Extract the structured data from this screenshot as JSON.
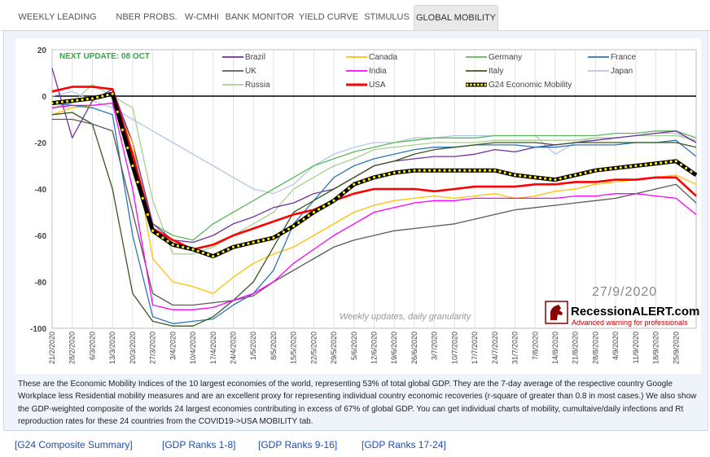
{
  "tabs": [
    "WEEKLY LEADING INDEX",
    "NBER PROBS.",
    "W-CMHI",
    "BANK MONITOR",
    "YIELD CURVE",
    "STIMULUS",
    "GLOBAL MOBILITY"
  ],
  "active_tab": "GLOBAL MOBILITY",
  "caption": "These are the Economic Mobility Indices of the 10 largest economies of the world, representing 53% of total global GDP. They are the 7-day average of the respective country Google Workplace less Residential mobility measures and are an excellent proxy for representing individual country economic recoveries (r-square of greater than 0.8 in most cases.) We also show the GDP-weighted composite of the worlds 24 largest economies contributing in excess of 67% of global GDP. You can get individual charts of mobility, cumultaive/daily infections and Rt reproduction rates for these 24 countries from the COVID19->USA MOBILITY tab.",
  "links": [
    "[G24 Composite Summary]",
    "[GDP Ranks 1-8]",
    "[GDP Ranks 9-16]",
    "[GDP Ranks 17-24]"
  ],
  "chart_data": {
    "type": "line",
    "annotations": {
      "next_update": "NEXT UPDATE: 08 OCT",
      "date_stamp": "27/9/2020",
      "footnote": "Weekly updates, daily granularity",
      "brand": "RecessionALERT.com",
      "brand_tagline": "Advanced warning for professionals"
    },
    "ylim": [
      -100,
      20
    ],
    "yticks": [
      20,
      0,
      -20,
      -40,
      -60,
      -80,
      -100
    ],
    "x_tick_labels": [
      "21/2/2020",
      "28/2/2020",
      "6/3/2020",
      "13/3/2020",
      "20/3/2020",
      "27/3/2020",
      "3/4/2020",
      "10/4/2020",
      "17/4/2020",
      "24/4/2020",
      "1/5/2020",
      "8/5/2020",
      "15/5/2020",
      "22/5/2020",
      "29/5/2020",
      "5/6/2020",
      "12/6/2020",
      "19/6/2020",
      "26/6/2020",
      "3/7/2020",
      "10/7/2020",
      "17/7/2020",
      "24/7/2020",
      "31/7/2020",
      "7/8/2020",
      "14/8/2020",
      "21/8/2020",
      "28/8/2020",
      "4/9/2020",
      "11/9/2020",
      "18/9/2020",
      "25/9/2020"
    ],
    "x": [
      "21/2",
      "28/2",
      "6/3",
      "13/3",
      "20/3",
      "27/3",
      "3/4",
      "10/4",
      "17/4",
      "24/4",
      "1/5",
      "8/5",
      "15/5",
      "22/5",
      "29/5",
      "5/6",
      "12/6",
      "19/6",
      "26/6",
      "3/7",
      "10/7",
      "17/7",
      "24/7",
      "31/7",
      "7/8",
      "14/8",
      "21/8",
      "28/8",
      "4/9",
      "11/9",
      "18/9",
      "25/9",
      "28/9"
    ],
    "colors": {
      "zero_line": "#000000",
      "marker": "#ffee00"
    },
    "series": [
      {
        "name": "Brazil",
        "color": "#7030a0",
        "values": [
          12,
          -18,
          -2,
          3,
          -20,
          -55,
          -62,
          -63,
          -60,
          -55,
          -52,
          -48,
          -46,
          -42,
          -40,
          -35,
          -30,
          -28,
          -27,
          -26,
          -26,
          -25,
          -23,
          -24,
          -22,
          -21,
          -20,
          -19,
          -18,
          -17,
          -16,
          -15,
          -20
        ]
      },
      {
        "name": "Canada",
        "color": "#ffc000",
        "values": [
          -8,
          -5,
          -4,
          -3,
          -20,
          -70,
          -80,
          -82,
          -85,
          -78,
          -72,
          -68,
          -65,
          -60,
          -55,
          -50,
          -47,
          -45,
          -44,
          -43,
          -44,
          -43,
          -42,
          -44,
          -43,
          -41,
          -40,
          -38,
          -37,
          -36,
          -35,
          -34,
          -38
        ]
      },
      {
        "name": "Germany",
        "color": "#5cb85c",
        "values": [
          -3,
          -2,
          -1,
          1,
          -20,
          -55,
          -60,
          -62,
          -55,
          -50,
          -45,
          -40,
          -35,
          -30,
          -27,
          -24,
          -22,
          -20,
          -19,
          -18,
          -18,
          -18,
          -17,
          -17,
          -17,
          -17,
          -17,
          -17,
          -16,
          -16,
          -15,
          -15,
          -18
        ]
      },
      {
        "name": "France",
        "color": "#2e75b6",
        "values": [
          -3,
          -4,
          -5,
          -8,
          -60,
          -95,
          -98,
          -97,
          -96,
          -90,
          -85,
          -75,
          -55,
          -45,
          -35,
          -30,
          -27,
          -25,
          -23,
          -22,
          -22,
          -21,
          -21,
          -21,
          -22,
          -22,
          -21,
          -21,
          -21,
          -20,
          -20,
          -19,
          -26
        ]
      },
      {
        "name": "UK",
        "color": "#595959",
        "values": [
          -10,
          -10,
          -12,
          -15,
          -50,
          -85,
          -90,
          -90,
          -89,
          -88,
          -86,
          -80,
          -75,
          -70,
          -65,
          -62,
          -60,
          -58,
          -57,
          -56,
          -55,
          -53,
          -51,
          -49,
          -48,
          -47,
          -46,
          -45,
          -44,
          -42,
          -40,
          -38,
          -46
        ]
      },
      {
        "name": "India",
        "color": "#ff00ff",
        "values": [
          -5,
          -4,
          -4,
          -3,
          -40,
          -90,
          -92,
          -92,
          -91,
          -88,
          -85,
          -80,
          -72,
          -66,
          -60,
          -55,
          -50,
          -48,
          -46,
          -45,
          -45,
          -44,
          -44,
          -44,
          -44,
          -44,
          -43,
          -43,
          -42,
          -42,
          -43,
          -44,
          -51
        ]
      },
      {
        "name": "Italy",
        "color": "#385723",
        "values": [
          -8,
          -7,
          -12,
          -40,
          -85,
          -97,
          -99,
          -99,
          -95,
          -88,
          -80,
          -65,
          -50,
          -45,
          -40,
          -35,
          -30,
          -28,
          -25,
          -23,
          -22,
          -21,
          -20,
          -20,
          -20,
          -21,
          -20,
          -20,
          -20,
          -20,
          -20,
          -20,
          -22
        ]
      },
      {
        "name": "Japan",
        "color": "#b4c7e7",
        "values": [
          0,
          2,
          -2,
          -5,
          -10,
          -15,
          -20,
          -25,
          -30,
          -35,
          -40,
          -42,
          -38,
          -30,
          -25,
          -22,
          -20,
          -20,
          -18,
          -18,
          -17,
          -17,
          -17,
          -17,
          -17,
          -25,
          -20,
          -18,
          -18,
          -17,
          -16,
          -16,
          -20
        ]
      },
      {
        "name": "Russia",
        "color": "#a9d18e",
        "values": [
          -5,
          -3,
          5,
          0,
          -5,
          -45,
          -68,
          -68,
          -65,
          -60,
          -55,
          -50,
          -40,
          -35,
          -30,
          -27,
          -23,
          -22,
          -21,
          -20,
          -20,
          -20,
          -19,
          -19,
          -19,
          -19,
          -19,
          -18,
          -18,
          -17,
          -17,
          -17,
          -19
        ]
      },
      {
        "name": "USA",
        "color": "#ff0000",
        "values": [
          2,
          4,
          4,
          3,
          -25,
          -57,
          -62,
          -66,
          -64,
          -60,
          -57,
          -54,
          -51,
          -49,
          -45,
          -42,
          -40,
          -40,
          -40,
          -41,
          -40,
          -39,
          -39,
          -39,
          -38,
          -38,
          -37,
          -37,
          -36,
          -36,
          -35,
          -35,
          -43
        ]
      },
      {
        "name": "G24 Economic Mobility",
        "color": "#000000",
        "values": [
          -3,
          -2,
          -1,
          1,
          -30,
          -58,
          -64,
          -66,
          -69,
          -65,
          -63,
          -61,
          -56,
          -50,
          -45,
          -38,
          -35,
          -33,
          -32,
          -32,
          -32,
          -32,
          -32,
          -34,
          -35,
          -36,
          -34,
          -32,
          -31,
          -30,
          -29,
          -28,
          -34
        ]
      }
    ]
  }
}
